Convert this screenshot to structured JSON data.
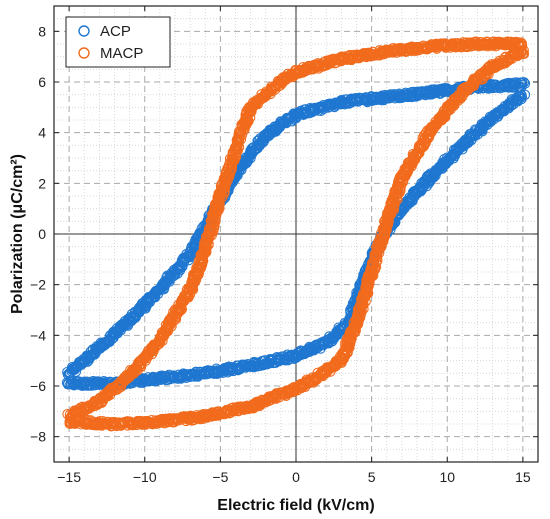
{
  "chart_data": {
    "type": "scatter",
    "xlabel": "Electric field (kV/cm)",
    "ylabel": "Polarization (μC/cm²)",
    "xlim": [
      -16,
      16
    ],
    "ylim": [
      -9,
      9
    ],
    "xticks": [
      -15,
      -10,
      -5,
      0,
      5,
      10,
      15
    ],
    "yticks": [
      -8,
      -6,
      -4,
      -2,
      0,
      2,
      4,
      6,
      8
    ],
    "grid": true,
    "minor_grid": true,
    "legend_position": "top-left",
    "series": [
      {
        "name": "ACP",
        "color": "#1f77d0",
        "loop": {
          "upper": [
            [
              -15,
              -5.5
            ],
            [
              -13,
              -4.5
            ],
            [
              -11,
              -3.4
            ],
            [
              -9,
              -2.2
            ],
            [
              -7,
              -0.8
            ],
            [
              -5.5,
              0.8
            ],
            [
              -4,
              2.4
            ],
            [
              -2,
              3.9
            ],
            [
              0,
              4.7
            ],
            [
              3,
              5.2
            ],
            [
              6,
              5.4
            ],
            [
              9,
              5.6
            ],
            [
              12,
              5.8
            ],
            [
              15,
              5.9
            ]
          ],
          "lower": [
            [
              15,
              5.5
            ],
            [
              13,
              4.6
            ],
            [
              11,
              3.5
            ],
            [
              9,
              2.3
            ],
            [
              7,
              1.0
            ],
            [
              5.5,
              -0.3
            ],
            [
              4.5,
              -1.8
            ],
            [
              3.5,
              -3.5
            ],
            [
              2,
              -4.3
            ],
            [
              0,
              -4.8
            ],
            [
              -3,
              -5.2
            ],
            [
              -6,
              -5.5
            ],
            [
              -9,
              -5.7
            ],
            [
              -12,
              -5.9
            ],
            [
              -15,
              -5.9
            ]
          ]
        }
      },
      {
        "name": "MACP",
        "color": "#f26b1d",
        "loop": {
          "upper": [
            [
              -15,
              -7.2
            ],
            [
              -13,
              -6.6
            ],
            [
              -11,
              -5.6
            ],
            [
              -9,
              -4.2
            ],
            [
              -7,
              -2.2
            ],
            [
              -6,
              -0.6
            ],
            [
              -5,
              1.5
            ],
            [
              -4,
              3.3
            ],
            [
              -3,
              5.0
            ],
            [
              -1,
              6.0
            ],
            [
              0,
              6.4
            ],
            [
              3,
              6.9
            ],
            [
              6,
              7.2
            ],
            [
              9,
              7.4
            ],
            [
              12,
              7.5
            ],
            [
              15,
              7.5
            ]
          ],
          "lower": [
            [
              15,
              7.2
            ],
            [
              13,
              6.6
            ],
            [
              11,
              5.6
            ],
            [
              9,
              4.2
            ],
            [
              7,
              2.2
            ],
            [
              6,
              0.5
            ],
            [
              5,
              -1.5
            ],
            [
              4,
              -3.5
            ],
            [
              3,
              -5.0
            ],
            [
              1,
              -5.8
            ],
            [
              0,
              -6.1
            ],
            [
              -3,
              -6.8
            ],
            [
              -6,
              -7.2
            ],
            [
              -9,
              -7.4
            ],
            [
              -12,
              -7.5
            ],
            [
              -15,
              -7.4
            ]
          ]
        }
      }
    ]
  }
}
